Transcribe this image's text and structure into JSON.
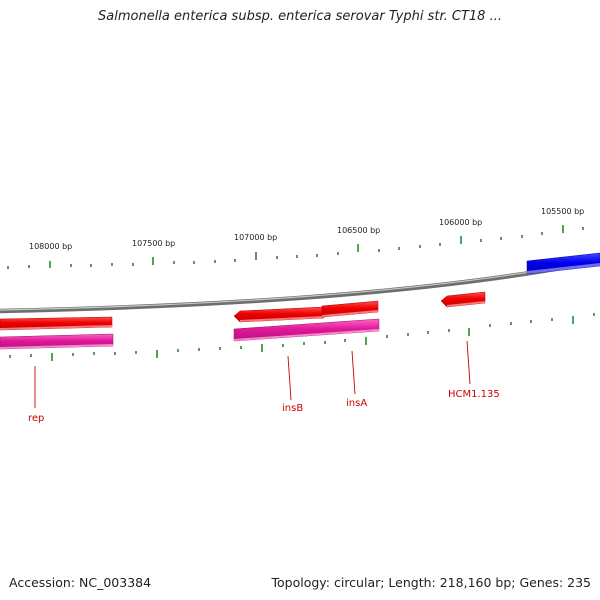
{
  "title": "Salmonella enterica subsp. enterica serovar Typhi str. CT18 ...",
  "footer": {
    "accession": "Accession: NC_003384",
    "summary": "Topology: circular; Length: 218,160 bp; Genes: 235"
  },
  "ruler_labels": [
    "108000 bp",
    "107500 bp",
    "107000 bp",
    "106500 bp",
    "106000 bp",
    "105500 bp"
  ],
  "gene_labels": [
    "rep",
    "insB",
    "insA",
    "HCM1.135"
  ],
  "colors": {
    "backbone": "#7a7a7a",
    "forward_gene": "#ee0000",
    "reverse_gene": "#0000ee",
    "pseudo_gene": "#e0189a",
    "tick": "#2a8a2a",
    "gene_label": "#cc0000"
  }
}
